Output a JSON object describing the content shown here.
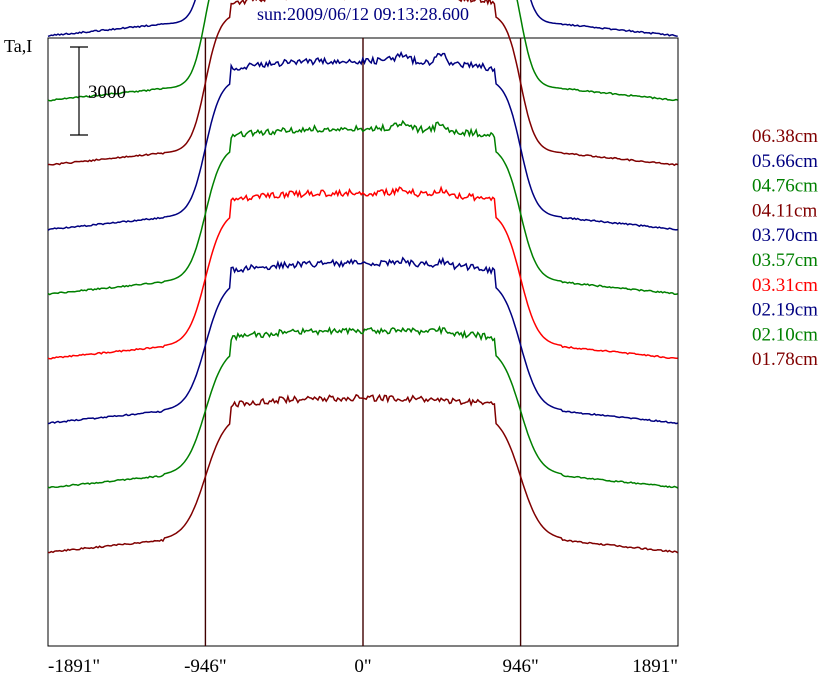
{
  "chart_data": {
    "type": "line",
    "title": "sun:2009/06/12 09:13:28.600",
    "ylabel": "Ta,I",
    "scale_bar_label": "3000",
    "x_ticks": [
      "-1891\"",
      "-946\"",
      "0\"",
      "946\"",
      "1891\""
    ],
    "x_tick_values": [
      -1891,
      -946,
      0,
      946,
      1891
    ],
    "xlim": [
      -1891,
      1891
    ],
    "vertical_markers": [
      -946,
      0,
      946
    ],
    "scale_bar_value": 3000,
    "series": [
      {
        "name": "06.38cm",
        "color": "#800000",
        "baseline": 22000,
        "disk_level": 6000
      },
      {
        "name": "05.66cm",
        "color": "#000080",
        "baseline": 19800,
        "disk_level": 6000
      },
      {
        "name": "04.76cm",
        "color": "#008000",
        "baseline": 17600,
        "disk_level": 5900
      },
      {
        "name": "04.11cm",
        "color": "#800000",
        "baseline": 15400,
        "disk_level": 5850
      },
      {
        "name": "03.70cm",
        "color": "#000080",
        "baseline": 13200,
        "disk_level": 5800
      },
      {
        "name": "03.57cm",
        "color": "#008000",
        "baseline": 11000,
        "disk_level": 5700
      },
      {
        "name": "03.31cm",
        "color": "#ff0000",
        "baseline": 8800,
        "disk_level": 5700
      },
      {
        "name": "02.19cm",
        "color": "#000080",
        "baseline": 6600,
        "disk_level": 5500
      },
      {
        "name": "02.10cm",
        "color": "#008000",
        "baseline": 4400,
        "disk_level": 5400
      },
      {
        "name": "01.78cm",
        "color": "#800000",
        "baseline": 2200,
        "disk_level": 5300
      }
    ]
  }
}
